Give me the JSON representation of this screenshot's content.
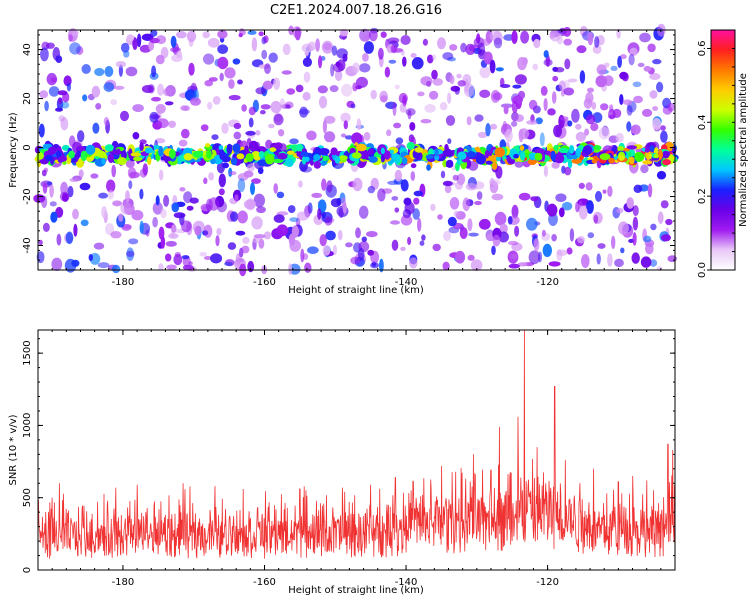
{
  "title": "C2E1.2024.007.18.26.G16",
  "chart_data": [
    {
      "type": "heatmap",
      "xlabel": "Height of straight line (km)",
      "ylabel": "Frequency (Hz)",
      "xlim": [
        -192,
        -102
      ],
      "ylim": [
        -50,
        48
      ],
      "xticks": [
        -180,
        -160,
        -140,
        -120
      ],
      "yticks": [
        -40,
        -20,
        0,
        20,
        40
      ],
      "band_center_hz": -3,
      "colorbar": {
        "label": "Normalized spectral amplitude",
        "range": [
          0,
          0.65
        ],
        "ticks": [
          0.0,
          0.2,
          0.4,
          0.6
        ],
        "colors": [
          "#ffffff",
          "#e9c8f7",
          "#9f1bf0",
          "#6a00e8",
          "#1a20ff",
          "#00c8ff",
          "#00ff9a",
          "#33ff00",
          "#ccff00",
          "#ffcc00",
          "#ff7a00",
          "#ff2020",
          "#ff10a0"
        ]
      }
    },
    {
      "type": "line",
      "xlabel": "Height of straight line (km)",
      "ylabel": "SNR (10 * v/v)",
      "xlim": [
        -192,
        -102
      ],
      "ylim": [
        0,
        1660
      ],
      "xticks": [
        -180,
        -160,
        -140,
        -120
      ],
      "yticks": [
        0,
        500,
        1000,
        1500
      ],
      "color": "#f03232",
      "baseline_segments": [
        {
          "x": -192,
          "y": 200
        },
        {
          "x": -160,
          "y": 210
        },
        {
          "x": -145,
          "y": 215
        },
        {
          "x": -138,
          "y": 270
        },
        {
          "x": -130,
          "y": 300
        },
        {
          "x": -124,
          "y": 340
        },
        {
          "x": -119,
          "y": 330
        },
        {
          "x": -112,
          "y": 240
        },
        {
          "x": -105,
          "y": 220
        },
        {
          "x": -102,
          "y": 260
        }
      ],
      "peaks": [
        {
          "x": -123.3,
          "y": 1660
        },
        {
          "x": -119.0,
          "y": 1270
        },
        {
          "x": -126.8,
          "y": 990
        },
        {
          "x": -124.2,
          "y": 1060
        },
        {
          "x": -130.5,
          "y": 800
        },
        {
          "x": -121.5,
          "y": 850
        },
        {
          "x": -117.5,
          "y": 760
        },
        {
          "x": -128.0,
          "y": 690
        },
        {
          "x": -103.0,
          "y": 870
        },
        {
          "x": -102.3,
          "y": 830
        },
        {
          "x": -141.5,
          "y": 640
        },
        {
          "x": -135.0,
          "y": 720
        },
        {
          "x": -139.0,
          "y": 610
        },
        {
          "x": -133.0,
          "y": 680
        },
        {
          "x": -113.5,
          "y": 700
        },
        {
          "x": -110.0,
          "y": 610
        },
        {
          "x": -108.0,
          "y": 650
        },
        {
          "x": -106.0,
          "y": 620
        },
        {
          "x": -189.0,
          "y": 600
        },
        {
          "x": -181.0,
          "y": 570
        },
        {
          "x": -178.0,
          "y": 590
        },
        {
          "x": -171.5,
          "y": 600
        },
        {
          "x": -167.0,
          "y": 580
        },
        {
          "x": -163.0,
          "y": 560
        },
        {
          "x": -155.0,
          "y": 560
        },
        {
          "x": -149.0,
          "y": 570
        },
        {
          "x": -145.0,
          "y": 590
        }
      ]
    }
  ]
}
